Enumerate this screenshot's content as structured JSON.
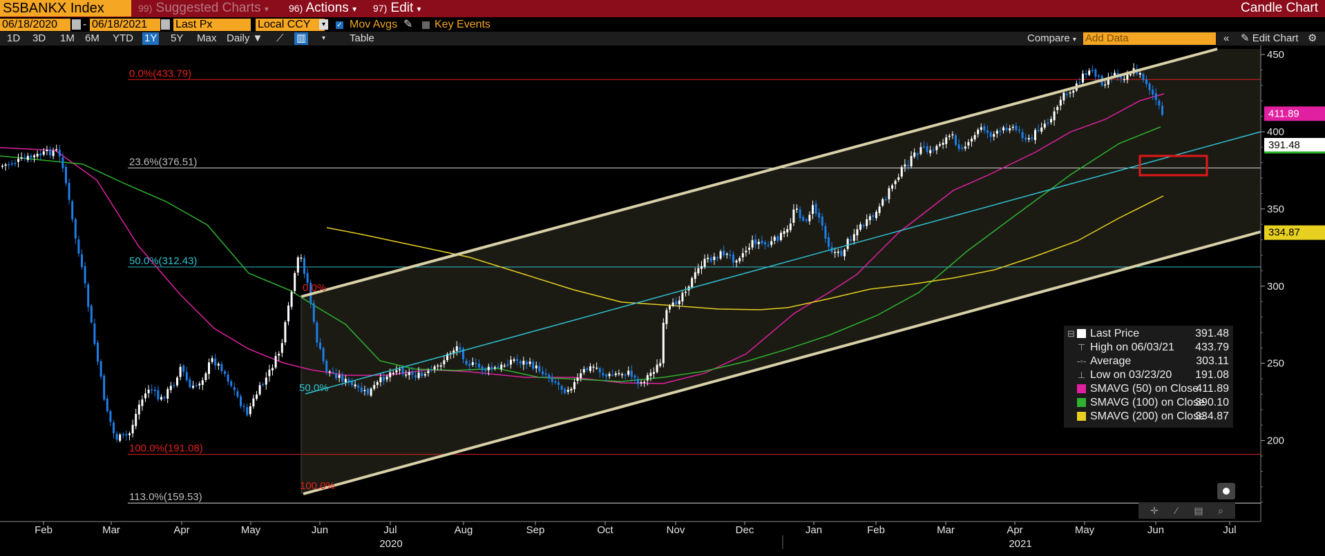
{
  "header": {
    "ticker": "S5BANKX Index",
    "menu_suggested_num": "99)",
    "menu_suggested": "Suggested Charts",
    "menu_actions_num": "96)",
    "menu_actions": "Actions",
    "menu_edit_num": "97)",
    "menu_edit": "Edit",
    "title": "Candle Chart"
  },
  "settings": {
    "start_date": "06/18/2020",
    "end_date": "06/18/2021",
    "price_field": "Last Px",
    "currency": "Local CCY",
    "mov_avgs": "Mov Avgs",
    "key_events": "Key Events"
  },
  "toolbar": {
    "periods": [
      "1D",
      "3D",
      "1M",
      "6M",
      "YTD",
      "1Y",
      "5Y",
      "Max"
    ],
    "selected_period": "1Y",
    "frequency": "Daily",
    "table": "Table",
    "compare": "Compare",
    "add_data_placeholder": "Add Data",
    "edit_chart": "Edit Chart"
  },
  "colors": {
    "accent_orange": "#f5a623",
    "header_red": "#8b0c1b",
    "price_candle_up": "#ffffff",
    "price_candle_down": "#1e7ee8",
    "sma50": "#e020a0",
    "sma100": "#2fb22f",
    "sma200": "#e8d020",
    "trend_channel": "#d8d0a8",
    "trend_mid": "#30c0d0",
    "fib": "#e0201c"
  },
  "chart_data": {
    "type": "candlestick",
    "ylim": [
      170,
      455
    ],
    "yticks": [
      200,
      250,
      300,
      350,
      400,
      450
    ],
    "x_month_labels": [
      "Feb",
      "Mar",
      "Apr",
      "May",
      "Jun",
      "Jul",
      "Aug",
      "Sep",
      "Oct",
      "Nov",
      "Dec",
      "Jan",
      "Feb",
      "Mar",
      "Apr",
      "May",
      "Jun",
      "Jul"
    ],
    "x_year_labels": [
      "2020",
      "2021"
    ],
    "series": [
      {
        "name": "Price",
        "values_approx_by_month": [
          355,
          335,
          240,
          232,
          300,
          250,
          262,
          245,
          252,
          300,
          312,
          340,
          380,
          405,
          398,
          430,
          391.48
        ]
      },
      {
        "name": "SMAVG (50)",
        "values_approx": [
          372,
          330,
          230,
          270,
          255,
          250,
          252,
          300,
          340,
          410,
          411.89
        ]
      },
      {
        "name": "SMAVG (100)",
        "values_approx": [
          362,
          280,
          250,
          250,
          262,
          300,
          340,
          390.1
        ]
      },
      {
        "name": "SMAVG (200)",
        "values_approx": [
          310,
          290,
          258,
          250,
          285,
          334.87
        ]
      }
    ],
    "fibonacci": [
      {
        "label": "0.0%(433.79)",
        "value": 433.79
      },
      {
        "label": "23.6%(376.51)",
        "value": 376.51
      },
      {
        "label": "50.0%(312.43)",
        "value": 312.43
      },
      {
        "label": "100.0%(191.08)",
        "value": 191.08
      },
      {
        "label": "113.0%(159.53)",
        "value": 159.53
      }
    ],
    "channel_labels": [
      "0.0%",
      "50.0%",
      "100.0%"
    ],
    "price_tags": [
      {
        "value": "411.89",
        "series": "SMAVG (50)"
      },
      {
        "value": "391.48",
        "series": "Last Price"
      },
      {
        "value": "334.87",
        "series": "SMAVG (200)"
      }
    ]
  },
  "legend": {
    "rows": [
      {
        "label": "Last Price",
        "value": "391.48"
      },
      {
        "label": "High on 06/03/21",
        "value": "433.79"
      },
      {
        "label": "Average",
        "value": "303.11"
      },
      {
        "label": "Low on 03/23/20",
        "value": "191.08"
      },
      {
        "label": "SMAVG (50)  on Close",
        "value": "411.89"
      },
      {
        "label": "SMAVG (100)  on Close",
        "value": "390.10"
      },
      {
        "label": "SMAVG (200)  on Close",
        "value": "334.87"
      }
    ]
  }
}
